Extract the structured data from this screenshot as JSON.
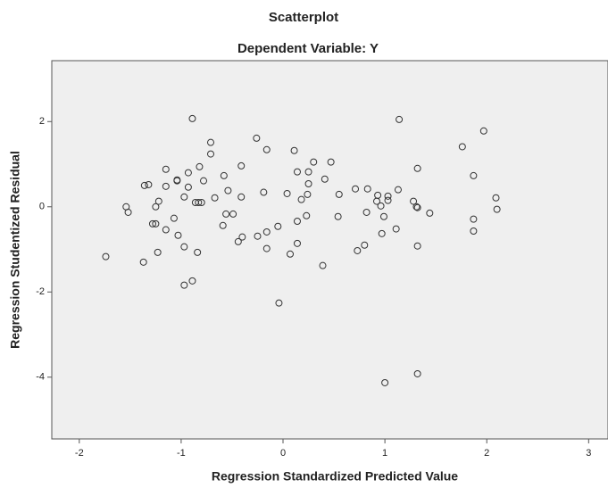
{
  "chart_data": {
    "type": "scatter",
    "title": "Scatterplot",
    "subtitle": "Dependent Variable: Y",
    "x_label": "Regression Standardized Predicted Value",
    "y_label": "Regression Studentized Residual",
    "x": [
      -0.89,
      1.14,
      1.97,
      -0.26,
      -0.71,
      1.76,
      -0.16,
      -0.71,
      0.11,
      0.3,
      0.47,
      -1.15,
      -0.82,
      -0.41,
      1.32,
      -0.93,
      0.14,
      0.25,
      -0.58,
      -1.04,
      -1.04,
      -0.78,
      1.87,
      0.41,
      -1.36,
      -1.32,
      -1.15,
      0.25,
      -0.93,
      0.71,
      0.83,
      1.13,
      -0.54,
      -0.19,
      0.04,
      0.55,
      0.24,
      0.93,
      1.03,
      2.09,
      -0.97,
      -0.67,
      -0.41,
      0.18,
      -1.22,
      -0.83,
      -0.86,
      -0.8,
      0.92,
      1.03,
      1.28,
      -1.54,
      -1.25,
      0.96,
      1.31,
      1.32,
      2.1,
      -1.52,
      0.82,
      1.44,
      -0.56,
      -0.49,
      0.23,
      0.54,
      0.99,
      -1.07,
      1.87,
      0.14,
      -1.25,
      -1.28,
      -0.59,
      -0.05,
      -1.15,
      1.11,
      1.87,
      -0.16,
      0.97,
      -1.03,
      -0.4,
      -0.25,
      -0.44,
      0.14,
      0.8,
      -0.97,
      1.32,
      -0.16,
      0.73,
      -0.84,
      -1.23,
      0.07,
      -1.74,
      -1.37,
      0.39,
      -0.89,
      -0.97,
      -0.04,
      1.32,
      1.0
    ],
    "values": [
      2.07,
      2.05,
      1.78,
      1.61,
      1.51,
      1.41,
      1.34,
      1.24,
      1.32,
      1.05,
      1.05,
      0.88,
      0.94,
      0.96,
      0.9,
      0.8,
      0.82,
      0.82,
      0.73,
      0.63,
      0.61,
      0.61,
      0.73,
      0.65,
      0.5,
      0.52,
      0.48,
      0.54,
      0.46,
      0.42,
      0.42,
      0.4,
      0.38,
      0.34,
      0.31,
      0.29,
      0.29,
      0.27,
      0.25,
      0.21,
      0.23,
      0.21,
      0.23,
      0.17,
      0.13,
      0.1,
      0.1,
      0.1,
      0.13,
      0.15,
      0.13,
      0.0,
      0.0,
      0.02,
      0.0,
      -0.02,
      -0.06,
      -0.13,
      -0.13,
      -0.15,
      -0.17,
      -0.17,
      -0.21,
      -0.23,
      -0.23,
      -0.27,
      -0.29,
      -0.34,
      -0.4,
      -0.4,
      -0.44,
      -0.46,
      -0.54,
      -0.52,
      -0.57,
      -0.59,
      -0.63,
      -0.67,
      -0.71,
      -0.69,
      -0.82,
      -0.86,
      -0.9,
      -0.94,
      -0.92,
      -0.98,
      -1.03,
      -1.07,
      -1.07,
      -1.11,
      -1.17,
      -1.3,
      -1.38,
      -1.74,
      -1.84,
      -2.26,
      -3.92,
      -4.13
    ],
    "color": "#333333",
    "xlim": [
      -2.27,
      3.19
    ],
    "xticks": [
      -2,
      -1,
      0,
      1,
      2,
      3
    ],
    "ylim": [
      -5.45,
      3.43
    ],
    "yticks": [
      -4,
      -2,
      0,
      2
    ]
  }
}
